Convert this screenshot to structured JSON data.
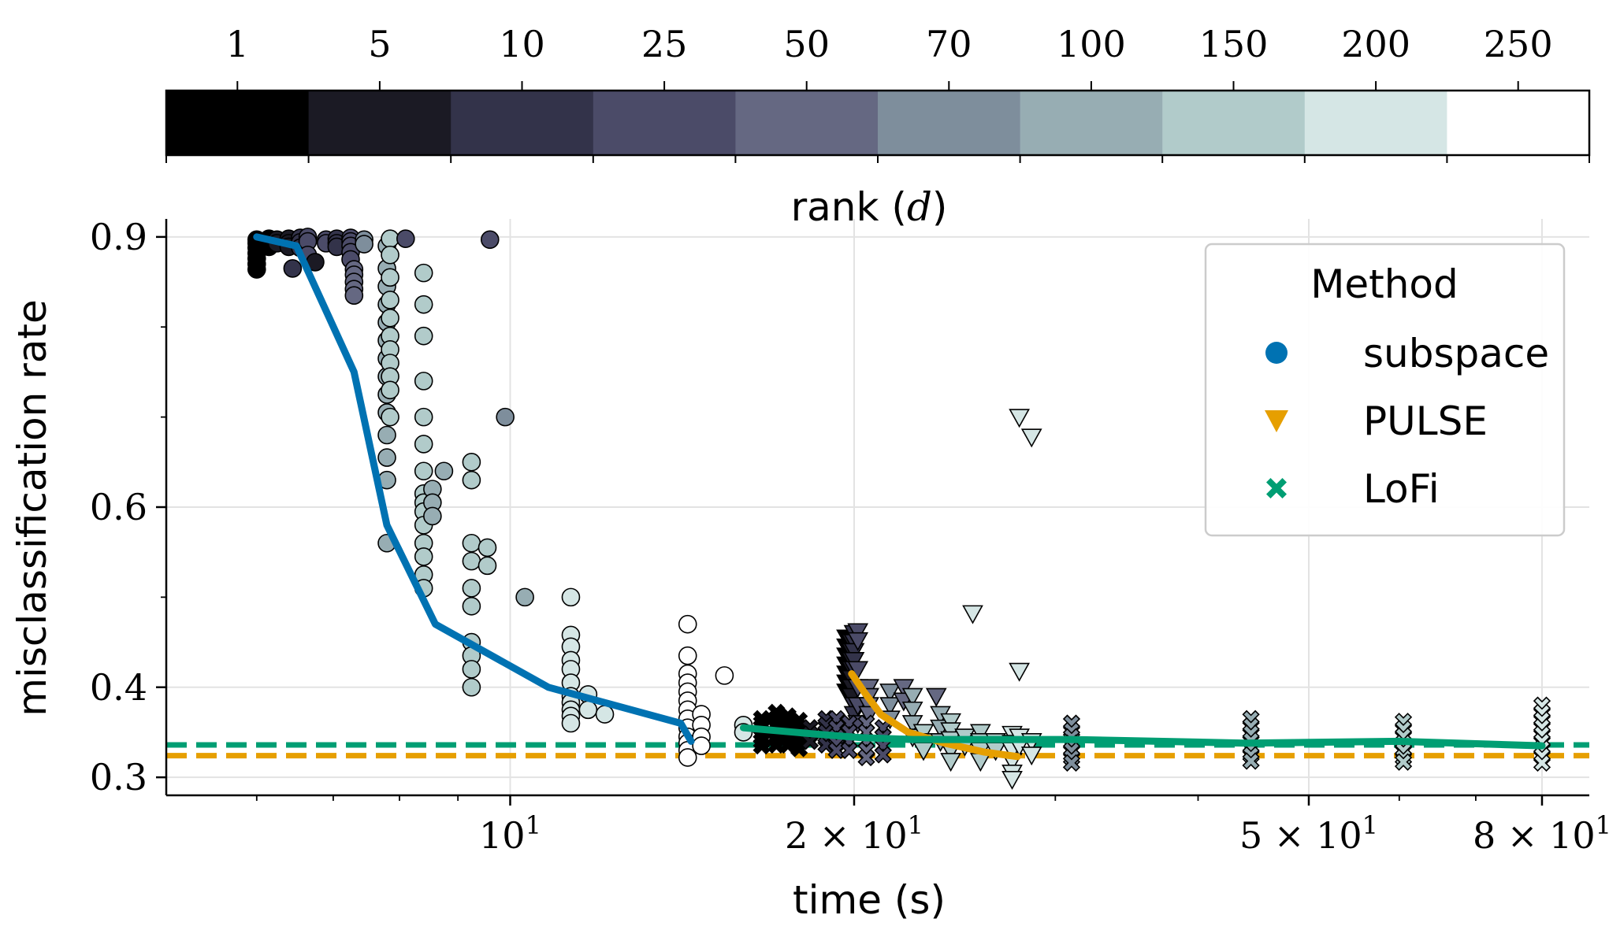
{
  "chart_data": {
    "type": "scatter",
    "xlabel": "time (s)",
    "ylabel": "misclassification rate",
    "xscale": "log",
    "xlim": [
      5.0,
      88.0
    ],
    "ylim": [
      0.28,
      0.92
    ],
    "grid": true,
    "x_tick_labels": [
      {
        "value": 10,
        "base": "10",
        "exp": "1"
      },
      {
        "value": 20,
        "base": "2 × 10",
        "exp": "1"
      },
      {
        "value": 50,
        "base": "5 × 10",
        "exp": "1"
      },
      {
        "value": 80,
        "base": "8 × 10",
        "exp": "1"
      }
    ],
    "y_tick_labels": [
      {
        "value": 0.3,
        "label": "0.3"
      },
      {
        "value": 0.4,
        "label": "0.4"
      },
      {
        "value": 0.6,
        "label": "0.6"
      },
      {
        "value": 0.9,
        "label": "0.9"
      }
    ],
    "colorbar": {
      "label_prefix": "rank (",
      "label_var": "d",
      "label_suffix": ")",
      "position": "top",
      "ranks": [
        "1",
        "5",
        "10",
        "25",
        "50",
        "70",
        "100",
        "150",
        "200",
        "250"
      ],
      "colors": [
        "#000000",
        "#1b1a24",
        "#33334a",
        "#4b4b68",
        "#656882",
        "#7e8e9c",
        "#97adb3",
        "#b1cbca",
        "#d5e6e5",
        "#ffffff"
      ]
    },
    "legend": {
      "title": "Method",
      "position": "top-right",
      "entries": [
        {
          "name": "subspace",
          "marker": "circle",
          "color": "#0072b2"
        },
        {
          "name": "PULSE",
          "marker": "triangle-down",
          "color": "#e69f00"
        },
        {
          "name": "LoFi",
          "marker": "x",
          "color": "#009e73"
        }
      ]
    },
    "reference_lines": [
      {
        "series": "LoFi",
        "y": 0.336,
        "color": "#009e73",
        "style": "dashed"
      },
      {
        "series": "PULSE",
        "y": 0.324,
        "color": "#e69f00",
        "style": "dashed"
      }
    ],
    "mean_lines": [
      {
        "series": "subspace",
        "color": "#0072b2",
        "x": [
          6.0,
          6.5,
          7.3,
          7.8,
          8.6,
          10.8,
          14.1,
          14.4
        ],
        "y": [
          0.9,
          0.89,
          0.75,
          0.58,
          0.47,
          0.4,
          0.36,
          0.34
        ]
      },
      {
        "series": "PULSE",
        "color": "#e69f00",
        "x": [
          19.9,
          20.4,
          21.1,
          22.3,
          24.0,
          26.0,
          27.8
        ],
        "y": [
          0.415,
          0.395,
          0.37,
          0.35,
          0.338,
          0.328,
          0.323
        ]
      },
      {
        "series": "LoFi",
        "color": "#009e73",
        "x": [
          16.0,
          18.5,
          20.3,
          22.5,
          25.5,
          31.0,
          44.0,
          60.0,
          80.0
        ],
        "y": [
          0.355,
          0.348,
          0.344,
          0.342,
          0.342,
          0.342,
          0.338,
          0.34,
          0.335
        ]
      }
    ],
    "series": [
      {
        "name": "subspace",
        "marker": "circle",
        "groups": [
          {
            "rank": 0,
            "x": 6.0,
            "y": [
              0.897,
              0.893,
              0.888,
              0.882,
              0.876,
              0.87,
              0.864
            ]
          },
          {
            "rank": 0,
            "x": 6.15,
            "y": [
              0.898,
              0.893,
              0.889
            ]
          },
          {
            "rank": 1,
            "x": 6.25,
            "y": [
              0.897,
              0.893
            ]
          },
          {
            "rank": 1,
            "x": 6.4,
            "y": [
              0.898,
              0.893,
              0.889
            ]
          },
          {
            "rank": 2,
            "x": 6.45,
            "y": [
              0.865
            ]
          },
          {
            "rank": 2,
            "x": 6.55,
            "y": [
              0.899,
              0.894,
              0.888
            ]
          },
          {
            "rank": 3,
            "x": 6.65,
            "y": [
              0.9,
              0.895,
              0.88
            ]
          },
          {
            "rank": 1,
            "x": 6.75,
            "y": [
              0.872
            ]
          },
          {
            "rank": 3,
            "x": 6.9,
            "y": [
              0.897,
              0.893
            ]
          },
          {
            "rank": 2,
            "x": 7.05,
            "y": [
              0.898,
              0.893,
              0.889
            ]
          },
          {
            "rank": 3,
            "x": 7.25,
            "y": [
              0.899,
              0.895,
              0.89,
              0.883,
              0.875
            ]
          },
          {
            "rank": 4,
            "x": 7.3,
            "y": [
              0.864,
              0.858,
              0.85,
              0.842,
              0.835
            ]
          },
          {
            "rank": 5,
            "x": 7.45,
            "y": [
              0.897,
              0.892
            ]
          },
          {
            "rank": 6,
            "x": 7.8,
            "y": [
              0.89,
              0.865,
              0.845,
              0.825,
              0.805,
              0.785,
              0.765,
              0.745,
              0.725,
              0.705,
              0.68,
              0.655,
              0.63,
              0.56
            ]
          },
          {
            "rank": 7,
            "x": 7.85,
            "y": [
              0.898,
              0.88,
              0.855,
              0.83,
              0.81,
              0.79,
              0.775,
              0.76,
              0.745,
              0.73,
              0.7
            ]
          },
          {
            "rank": 3,
            "x": 8.1,
            "y": [
              0.898
            ]
          },
          {
            "rank": 7,
            "x": 8.4,
            "y": [
              0.86,
              0.825,
              0.79,
              0.74,
              0.7,
              0.67,
              0.64,
              0.615,
              0.605,
              0.595,
              0.58,
              0.56,
              0.545,
              0.525,
              0.51
            ]
          },
          {
            "rank": 6,
            "x": 8.55,
            "y": [
              0.62,
              0.605,
              0.59
            ]
          },
          {
            "rank": 6,
            "x": 8.75,
            "y": [
              0.64
            ]
          },
          {
            "rank": 7,
            "x": 9.25,
            "y": [
              0.65,
              0.63,
              0.56,
              0.54,
              0.51,
              0.49,
              0.45,
              0.435,
              0.42,
              0.4
            ]
          },
          {
            "rank": 7,
            "x": 9.55,
            "y": [
              0.555,
              0.535
            ]
          },
          {
            "rank": 3,
            "x": 9.6,
            "y": [
              0.897
            ]
          },
          {
            "rank": 5,
            "x": 9.9,
            "y": [
              0.7
            ]
          },
          {
            "rank": 6,
            "x": 10.3,
            "y": [
              0.5
            ]
          },
          {
            "rank": 8,
            "x": 11.3,
            "y": [
              0.5,
              0.458,
              0.445,
              0.43,
              0.42,
              0.405,
              0.39,
              0.383,
              0.375,
              0.368,
              0.36
            ]
          },
          {
            "rank": 8,
            "x": 11.7,
            "y": [
              0.392,
              0.375
            ]
          },
          {
            "rank": 8,
            "x": 12.1,
            "y": [
              0.37
            ]
          },
          {
            "rank": 9,
            "x": 14.3,
            "y": [
              0.47,
              0.435,
              0.415,
              0.405,
              0.395,
              0.385,
              0.375,
              0.365,
              0.355,
              0.345,
              0.338,
              0.33,
              0.322
            ]
          },
          {
            "rank": 9,
            "x": 14.7,
            "y": [
              0.37,
              0.358,
              0.345,
              0.335
            ]
          },
          {
            "rank": 9,
            "x": 15.4,
            "y": [
              0.413
            ]
          },
          {
            "rank": 8,
            "x": 16.0,
            "y": [
              0.358,
              0.35
            ]
          }
        ]
      },
      {
        "name": "PULSE",
        "marker": "triangle-down",
        "groups": [
          {
            "rank": 0,
            "x": 19.7,
            "y": [
              0.455,
              0.445,
              0.435,
              0.425,
              0.415,
              0.405,
              0.395
            ]
          },
          {
            "rank": 1,
            "x": 19.9,
            "y": [
              0.45,
              0.44,
              0.43,
              0.42,
              0.41,
              0.4,
              0.39
            ]
          },
          {
            "rank": 2,
            "x": 20.0,
            "y": [
              0.46,
              0.45,
              0.44,
              0.43,
              0.42,
              0.38,
              0.37
            ]
          },
          {
            "rank": 3,
            "x": 20.15,
            "y": [
              0.462,
              0.452,
              0.42,
              0.4,
              0.38,
              0.36
            ]
          },
          {
            "rank": 4,
            "x": 20.6,
            "y": [
              0.4,
              0.39,
              0.38,
              0.37
            ]
          },
          {
            "rank": 5,
            "x": 21.5,
            "y": [
              0.395,
              0.38,
              0.365
            ]
          },
          {
            "rank": 4,
            "x": 22.1,
            "y": [
              0.4,
              0.385
            ]
          },
          {
            "rank": 6,
            "x": 22.5,
            "y": [
              0.39,
              0.375,
              0.36,
              0.345
            ]
          },
          {
            "rank": 7,
            "x": 23.0,
            "y": [
              0.35,
              0.34,
              0.33
            ]
          },
          {
            "rank": 4,
            "x": 23.6,
            "y": [
              0.39
            ]
          },
          {
            "rank": 6,
            "x": 23.8,
            "y": [
              0.37,
              0.355,
              0.34
            ]
          },
          {
            "rank": 7,
            "x": 24.3,
            "y": [
              0.362,
              0.352,
              0.342,
              0.33,
              0.318
            ]
          },
          {
            "rank": 7,
            "x": 25.0,
            "y": [
              0.345,
              0.335
            ]
          },
          {
            "rank": 8,
            "x": 25.4,
            "y": [
              0.482
            ]
          },
          {
            "rank": 7,
            "x": 25.8,
            "y": [
              0.35,
              0.34,
              0.33,
              0.318
            ]
          },
          {
            "rank": 7,
            "x": 26.6,
            "y": [
              0.34,
              0.33
            ]
          },
          {
            "rank": 8,
            "x": 27.5,
            "y": [
              0.348,
              0.338,
              0.33,
              0.318,
              0.305,
              0.298
            ]
          },
          {
            "rank": 8,
            "x": 27.9,
            "y": [
              0.7,
              0.418,
              0.345,
              0.335
            ]
          },
          {
            "rank": 8,
            "x": 28.6,
            "y": [
              0.678,
              0.34,
              0.325
            ]
          }
        ]
      },
      {
        "name": "LoFi",
        "marker": "x",
        "groups": [
          {
            "rank": 0,
            "x": 16.6,
            "y": [
              0.365,
              0.36,
              0.355,
              0.35,
              0.345,
              0.34,
              0.335
            ]
          },
          {
            "rank": 0,
            "x": 17.1,
            "y": [
              0.372,
              0.365,
              0.358,
              0.35,
              0.343,
              0.336
            ]
          },
          {
            "rank": 0,
            "x": 17.5,
            "y": [
              0.368,
              0.36,
              0.352,
              0.344,
              0.336
            ]
          },
          {
            "rank": 0,
            "x": 17.9,
            "y": [
              0.363,
              0.355,
              0.347,
              0.339,
              0.332
            ]
          },
          {
            "rank": 1,
            "x": 18.3,
            "y": [
              0.355,
              0.348,
              0.34
            ]
          },
          {
            "rank": 2,
            "x": 18.9,
            "y": [
              0.365,
              0.358,
              0.35,
              0.343,
              0.336
            ]
          },
          {
            "rank": 3,
            "x": 19.3,
            "y": [
              0.365,
              0.355,
              0.345,
              0.338,
              0.33
            ]
          },
          {
            "rank": 3,
            "x": 19.8,
            "y": [
              0.36,
              0.35,
              0.34,
              0.33
            ]
          },
          {
            "rank": 4,
            "x": 20.5,
            "y": [
              0.36,
              0.35,
              0.34,
              0.33,
              0.322
            ]
          },
          {
            "rank": 3,
            "x": 21.2,
            "y": [
              0.355,
              0.345,
              0.335,
              0.325
            ]
          },
          {
            "rank": 5,
            "x": 31.0,
            "y": [
              0.36,
              0.352,
              0.345,
              0.338,
              0.33,
              0.322,
              0.316
            ]
          },
          {
            "rank": 6,
            "x": 44.5,
            "y": [
              0.365,
              0.357,
              0.349,
              0.341,
              0.333,
              0.325,
              0.318
            ]
          },
          {
            "rank": 7,
            "x": 60.5,
            "y": [
              0.362,
              0.354,
              0.346,
              0.338,
              0.33,
              0.322,
              0.317
            ]
          },
          {
            "rank": 8,
            "x": 80.0,
            "y": [
              0.38,
              0.372,
              0.364,
              0.356,
              0.348,
              0.34,
              0.332,
              0.324,
              0.316
            ]
          }
        ]
      }
    ]
  }
}
